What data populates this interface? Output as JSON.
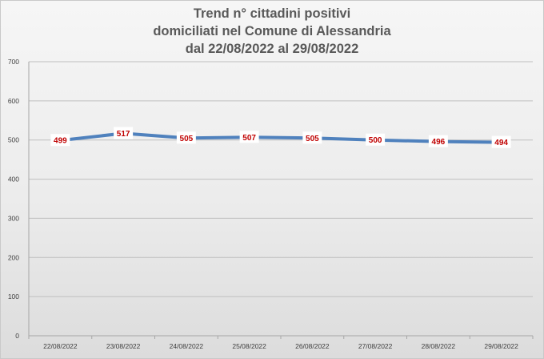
{
  "chart_data": {
    "type": "line",
    "title_lines": [
      "Trend n° cittadini positivi",
      "domiciliati nel Comune di Alessandria",
      "dal 22/08/2022 al 29/08/2022"
    ],
    "xlabel": "",
    "ylabel": "",
    "categories": [
      "22/08/2022",
      "23/08/2022",
      "24/08/2022",
      "25/08/2022",
      "26/08/2022",
      "27/08/2022",
      "28/08/2022",
      "29/08/2022"
    ],
    "series": [
      {
        "values": [
          499,
          517,
          505,
          507,
          505,
          500,
          496,
          494
        ],
        "color": "#4f81bd"
      }
    ],
    "data_labels": [
      "499",
      "517",
      "505",
      "507",
      "505",
      "500",
      "496",
      "494"
    ],
    "ylim": [
      0,
      700
    ],
    "yticks": [
      "0",
      "100",
      "200",
      "300",
      "400",
      "500",
      "600",
      "700"
    ],
    "grid": true,
    "legend": "none",
    "colors": {
      "line": "#4f81bd",
      "label_text": "#c00000",
      "grid": "#bfbfbf",
      "title": "#595959"
    }
  }
}
